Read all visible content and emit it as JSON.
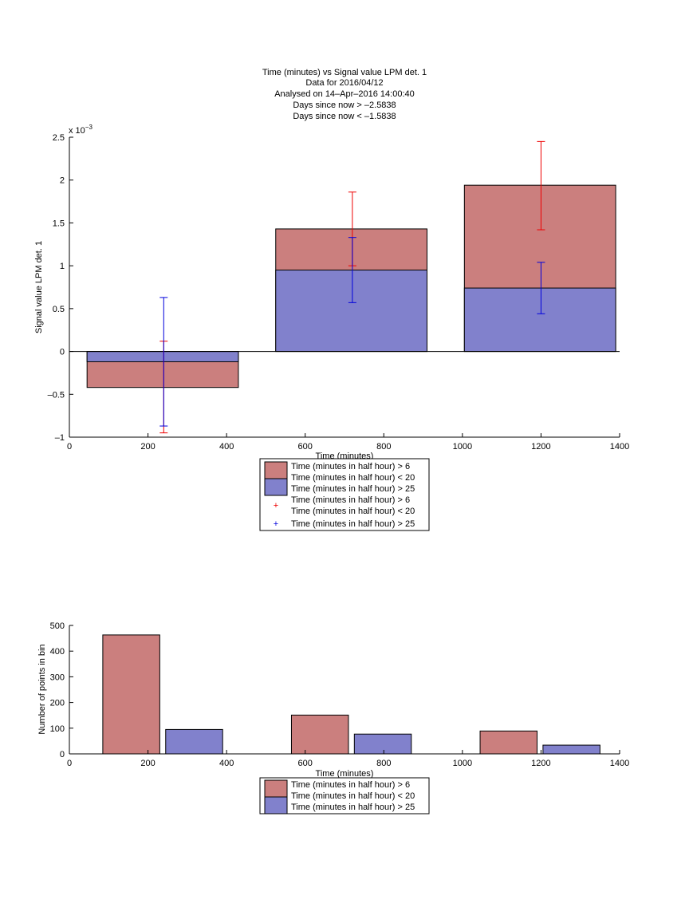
{
  "chart_data": [
    {
      "type": "bar",
      "title_lines": [
        "Time (minutes) vs Signal value LPM det. 1",
        "Data for 2016/04/12",
        "Analysed on 14–Apr–2016 14:00:40",
        "Days since now > –2.5838",
        "Days since now < –1.5838"
      ],
      "xlabel": "Time (minutes)",
      "ylabel": "Signal value LPM det. 1",
      "y_exponent": "x 10^-3",
      "xlim": [
        0,
        1400
      ],
      "ylim": [
        -1,
        2.5
      ],
      "xticks": [
        0,
        200,
        400,
        600,
        800,
        1000,
        1200,
        1400
      ],
      "yticks": [
        -1,
        -0.5,
        0,
        0.5,
        1,
        1.5,
        2,
        2.5
      ],
      "ytick_labels": [
        "–1",
        "–0.5",
        "0",
        "0.5",
        "1",
        "1.5",
        "2",
        "2.5"
      ],
      "colors": {
        "series1": "#cb7f7e",
        "series2": "#8181cc",
        "err1": "#ee0000",
        "err2": "#0000dd"
      },
      "bars": [
        {
          "x_start": 45,
          "x_end": 430,
          "series1": -0.42,
          "series2": -0.12
        },
        {
          "x_start": 525,
          "x_end": 910,
          "series1": 1.43,
          "series2": 0.95
        },
        {
          "x_start": 1005,
          "x_end": 1390,
          "series1": 1.94,
          "series2": 0.74
        }
      ],
      "errorbars": {
        "x": [
          240,
          720,
          1200
        ],
        "series1_low": [
          -0.95,
          1.0,
          1.42
        ],
        "series1_high": [
          0.12,
          1.86,
          2.45
        ],
        "series2_low": [
          -0.87,
          0.57,
          0.44
        ],
        "series2_high": [
          0.63,
          1.33,
          1.04
        ]
      },
      "legend": [
        {
          "label1": "Time (minutes in half hour) > 6",
          "label2": "Time (minutes in half hour) < 20"
        },
        {
          "label1": "Time (minutes in half hour) > 25"
        },
        {
          "label1": "Time (minutes in half hour) > 6",
          "label2": "Time (minutes in half hour) < 20"
        },
        {
          "label1": "Time (minutes in half hour) > 25"
        }
      ]
    },
    {
      "type": "bar",
      "xlabel": "Time (minutes)",
      "ylabel": "Number of points in bin",
      "xlim": [
        0,
        1400
      ],
      "ylim": [
        0,
        500
      ],
      "xticks": [
        0,
        200,
        400,
        600,
        800,
        1000,
        1200,
        1400
      ],
      "yticks": [
        0,
        100,
        200,
        300,
        400,
        500
      ],
      "bars": [
        {
          "series": 1,
          "x_start": 85,
          "x_end": 230,
          "value": 463
        },
        {
          "series": 2,
          "x_start": 245,
          "x_end": 390,
          "value": 95
        },
        {
          "series": 1,
          "x_start": 565,
          "x_end": 710,
          "value": 151
        },
        {
          "series": 2,
          "x_start": 725,
          "x_end": 870,
          "value": 77
        },
        {
          "series": 1,
          "x_start": 1045,
          "x_end": 1190,
          "value": 89
        },
        {
          "series": 2,
          "x_start": 1205,
          "x_end": 1350,
          "value": 34
        }
      ],
      "legend": [
        {
          "label1": "Time (minutes in half hour) > 6",
          "label2": "Time (minutes in half hour) < 20"
        },
        {
          "label1": "Time (minutes in half hour) > 25"
        }
      ]
    }
  ]
}
